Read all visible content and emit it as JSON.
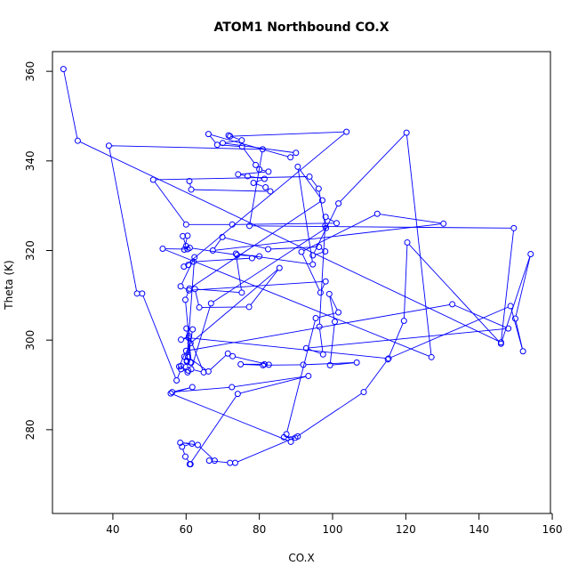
{
  "chart_data": {
    "type": "line",
    "title": "ATOM1 Northbound CO.X",
    "xlabel": "CO.X",
    "ylabel": "Theta (K)",
    "xlim": [
      23.5,
      159.5
    ],
    "ylim": [
      261.3,
      364.4
    ],
    "x_ticks": [
      40,
      60,
      80,
      100,
      120,
      140,
      160
    ],
    "y_ticks": [
      280,
      300,
      320,
      340,
      360
    ],
    "grid": false,
    "legend": "none",
    "line_color": "#0000ff",
    "marker": "open-circle",
    "series": [
      {
        "x": [
          26.5,
          30.4,
          146.0,
          149.5,
          77.3,
          80.9,
          38.9,
          46.6,
          48.0,
          57.4,
          58.6,
          60.4,
          58.6,
          61.4,
          59.8,
          60.9,
          97.2,
          90.5,
          94.6,
          73.6,
          75.2,
          62.4,
          63.6,
          77.2,
          85.5,
          61.2,
          59.5,
          61.2,
          60.1,
          61.8,
          60.5,
          66.1,
          71.4,
          72.7,
          82.6,
          81.4,
          74.9,
          81.0,
          92.0,
          106.6,
          99.3,
          100.6,
          99.1,
          101.6,
          95.4,
          87.4,
          88.6,
          55.8,
          61.7,
          56.2,
          72.5,
          93.4,
          74.1,
          61.0,
          61.2,
          59.8,
          58.9,
          61.6,
          58.4,
          63.2,
          67.8,
          66.3,
          72.0,
          73.4,
          90.5,
          86.7,
          89.8,
          108.5,
          115.1,
          119.5,
          120.4,
          146.0,
          154.1,
          149.9,
          152.0,
          148.6,
          115.3,
          60.7,
          58.6,
          60.8,
          64.8,
          61.4,
          66.8,
          98.2,
          98.0,
          96.2,
          93.7,
          51.0,
          60.0,
          72.6,
          101.1,
          98.1,
          96.4,
          97.4,
          92.8,
          148.0,
          132.7,
          60.0,
          58.1,
          60.6,
          60.2,
          60.2,
          62.3,
          58.5,
          60.8,
          98.1,
          96.7,
          91.5,
          112.2,
          130.3,
          67.3,
          69.9,
          82.4,
          96.3,
          98.0,
          94.6,
          101.6,
          120.2,
          127.0,
          53.6,
          60.4,
          59.5,
          60.4,
          59.1,
          60.0,
          61.0,
          73.9,
          80.0,
          78.0,
          62.0,
          60.6,
          59.4,
          103.8,
          72.0,
          71.6,
          75.2,
          70.0,
          90.0,
          88.5,
          66.1,
          68.5,
          75.3,
          79.0,
          80.0,
          82.5,
          74.2,
          76.8,
          81.4,
          78.4,
          81.7,
          83.0,
          61.4,
          60.9
        ],
        "y": [
          360.5,
          344.5,
          299.5,
          325.0,
          325.5,
          342.6,
          343.4,
          310.4,
          310.4,
          291.0,
          293.5,
          292.8,
          294.2,
          295.0,
          309.0,
          311.5,
          331.2,
          338.7,
          316.9,
          319.3,
          310.6,
          311.4,
          307.3,
          307.4,
          316.1,
          299.3,
          296.3,
          295.0,
          302.6,
          302.4,
          296.2,
          293.0,
          297.0,
          296.4,
          294.5,
          294.6,
          294.6,
          294.4,
          294.5,
          295.0,
          294.4,
          304.1,
          310.3,
          306.2,
          304.9,
          279.0,
          277.3,
          288.1,
          289.5,
          288.4,
          289.5,
          292.0,
          288.0,
          272.3,
          272.3,
          274.0,
          276.2,
          276.9,
          277.1,
          276.6,
          273.1,
          273.1,
          272.6,
          272.6,
          278.5,
          278.3,
          278.2,
          288.4,
          295.7,
          304.3,
          321.8,
          299.2,
          319.2,
          304.8,
          297.5,
          307.6,
          295.9,
          300.5,
          300.1,
          300.9,
          292.8,
          293.5,
          308.2,
          325.0,
          325.5,
          333.8,
          336.5,
          335.8,
          325.8,
          325.8,
          326.1,
          327.5,
          303.0,
          296.8,
          298.2,
          302.6,
          308.0,
          297.6,
          294.1,
          293.2,
          295.2,
          295.4,
          318.5,
          312.0,
          311.1,
          313.1,
          310.6,
          319.7,
          328.2,
          326.0,
          320.0,
          323.0,
          320.3,
          320.8,
          319.8,
          318.9,
          330.5,
          346.3,
          296.2,
          320.4,
          320.3,
          320.2,
          323.3,
          323.2,
          321.0,
          320.6,
          319.0,
          318.7,
          318.3,
          317.5,
          316.8,
          316.4,
          346.5,
          345.5,
          345.7,
          344.6,
          344.0,
          341.8,
          340.8,
          346.0,
          343.6,
          343.2,
          339.1,
          338.1,
          337.6,
          337.0,
          336.6,
          336.0,
          335.1,
          334.1,
          333.2,
          333.6,
          335.5
        ]
      }
    ]
  }
}
